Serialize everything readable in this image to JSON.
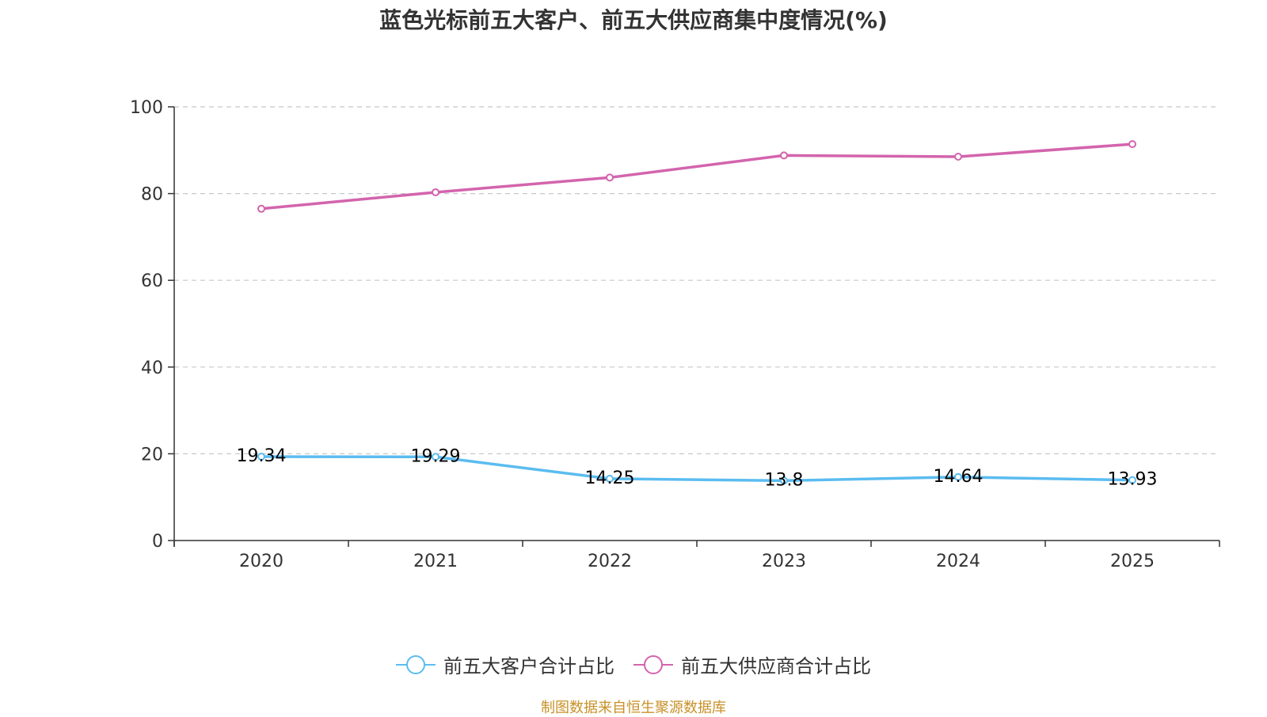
{
  "chart_data": {
    "type": "line",
    "title": "蓝色光标前五大客户、前五大供应商集中度情况(%)",
    "categories": [
      "2020",
      "2021",
      "2022",
      "2023",
      "2024",
      "2025"
    ],
    "series": [
      {
        "name": "前五大客户合计占比",
        "values": [
          19.34,
          19.29,
          14.25,
          13.8,
          14.64,
          13.93
        ],
        "color": "#5bbcf0",
        "show_labels": true,
        "labels": [
          "19.34",
          "19.29",
          "14.25",
          "13.8",
          "14.64",
          "13.93"
        ]
      },
      {
        "name": "前五大供应商合计占比",
        "values": [
          76.5,
          80.3,
          83.7,
          88.8,
          88.5,
          91.4
        ],
        "color": "#d364ad",
        "show_labels": false
      }
    ],
    "ylim": [
      0,
      100
    ],
    "yticks": [
      "0",
      "20",
      "40",
      "60",
      "80",
      "100"
    ],
    "grid": true,
    "legend": "bottom-center",
    "xlabel": "",
    "ylabel": ""
  },
  "source": {
    "text": "制图数据来自恒生聚源数据库",
    "color": "#c89028"
  }
}
